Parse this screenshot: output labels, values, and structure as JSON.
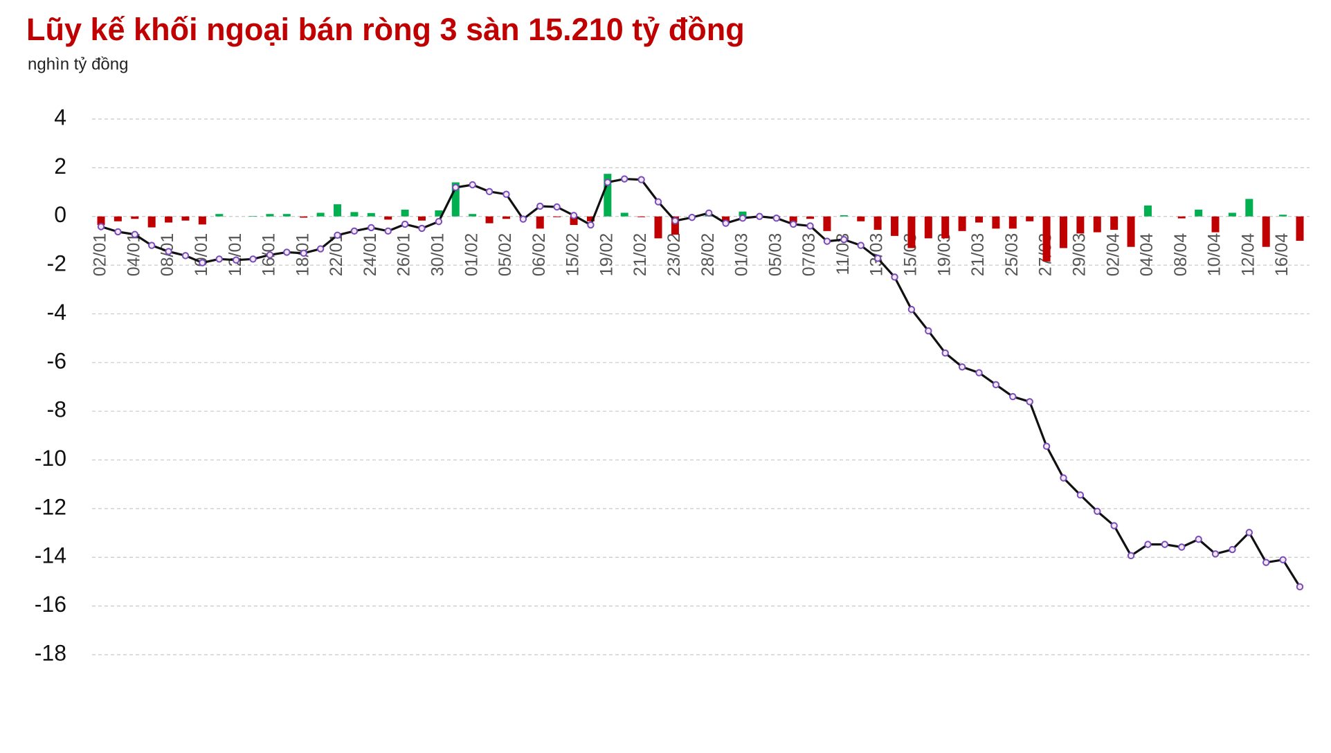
{
  "chart_data": {
    "type": "combo",
    "title": "Lũy kế khối ngoại bán ròng 3 sàn 15.210 tỷ đồng",
    "subtitle": "nghìn tỷ đồng",
    "categories": [
      "02/01",
      null,
      "04/01",
      null,
      "08/01",
      null,
      "10/01",
      null,
      "12/01",
      null,
      "16/01",
      null,
      "18/01",
      null,
      "22/01",
      null,
      "24/01",
      null,
      "26/01",
      null,
      "30/01",
      null,
      "01/02",
      null,
      "05/02",
      null,
      "06/02",
      null,
      "15/02",
      null,
      "19/02",
      null,
      "21/02",
      null,
      "23/02",
      null,
      "28/02",
      null,
      "01/03",
      null,
      "05/03",
      null,
      "07/03",
      null,
      "11/03",
      null,
      "13/03",
      null,
      "15/03",
      null,
      "19/03",
      null,
      "21/03",
      null,
      "25/03",
      null,
      "27/03",
      null,
      "29/03",
      null,
      "02/04",
      null,
      "04/04",
      null,
      "08/04",
      null,
      "10/04",
      null,
      "12/04",
      null,
      "16/04",
      null
    ],
    "series": [
      {
        "type": "bar",
        "positive_color": "#00b050",
        "negative_color": "#c00000",
        "values": [
          -0.35,
          -0.2,
          -0.1,
          -0.45,
          -0.25,
          -0.17,
          -0.33,
          0.1,
          0,
          0.02,
          0.1,
          0.1,
          -0.05,
          0.15,
          0.5,
          0.18,
          0.14,
          -0.13,
          0.28,
          -0.17,
          0.25,
          1.4,
          0.1,
          -0.28,
          -0.1,
          -0.05,
          -0.5,
          -0.03,
          -0.35,
          -0.2,
          1.75,
          0.15,
          -0.03,
          -0.9,
          -0.75,
          0.03,
          0.1,
          -0.25,
          0.2,
          0.03,
          -0.05,
          -0.25,
          -0.1,
          -0.6,
          0.05,
          -0.2,
          -0.55,
          -0.8,
          -1.3,
          -0.9,
          -0.9,
          -0.6,
          -0.25,
          -0.5,
          -0.5,
          -0.2,
          -1.85,
          -1.3,
          -0.7,
          -0.65,
          -0.55,
          -1.25,
          0.45,
          0,
          -0.08,
          0.28,
          -0.65,
          0.15,
          0.72,
          -1.25,
          0.07,
          -1.0
        ]
      },
      {
        "type": "line",
        "color": "#111111",
        "marker_color": "#7b4bb7",
        "values": [
          -0.42,
          -0.63,
          -0.74,
          -1.19,
          -1.44,
          -1.61,
          -1.9,
          -1.75,
          -1.79,
          -1.75,
          -1.58,
          -1.47,
          -1.51,
          -1.33,
          -0.77,
          -0.6,
          -0.46,
          -0.6,
          -0.32,
          -0.49,
          -0.21,
          1.19,
          1.3,
          1.02,
          0.91,
          -0.11,
          0.42,
          0.39,
          0.04,
          -0.35,
          1.4,
          1.54,
          1.51,
          0.6,
          -0.18,
          -0.04,
          0.14,
          -0.28,
          -0.07,
          0,
          -0.07,
          -0.32,
          -0.39,
          -1.02,
          -0.95,
          -1.19,
          -1.72,
          -2.49,
          -3.82,
          -4.7,
          -5.61,
          -6.18,
          -6.42,
          -6.91,
          -7.4,
          -7.61,
          -9.44,
          -10.74,
          -11.44,
          -12.11,
          -12.7,
          -13.93,
          -13.47,
          -13.47,
          -13.58,
          -13.26,
          -13.86,
          -13.68,
          -12.98,
          -14.21,
          -14.1,
          -15.21
        ]
      }
    ],
    "ylim": [
      -18,
      4
    ],
    "yticks": [
      -18,
      -16,
      -14,
      -12,
      -10,
      -8,
      -6,
      -4,
      -2,
      0,
      2,
      4
    ],
    "grid": true,
    "title_color": "#c00000"
  }
}
